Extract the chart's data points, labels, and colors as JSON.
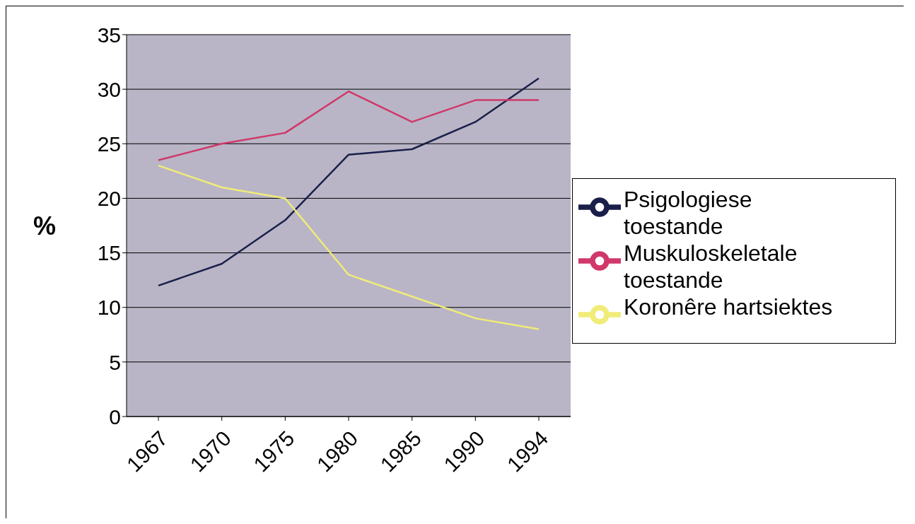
{
  "chart_data": {
    "type": "line",
    "ylabel": "%",
    "categories": [
      "1967",
      "1970",
      "1975",
      "1980",
      "1985",
      "1990",
      "1994"
    ],
    "series": [
      {
        "name": "Psigologiese toestande",
        "color": "#1a1f4a",
        "values": [
          12,
          14,
          18,
          24,
          24.5,
          27,
          31
        ]
      },
      {
        "name": "Muskuloskeletale toestande",
        "color": "#d0386a",
        "values": [
          23.5,
          25,
          26,
          29.8,
          27,
          29,
          29
        ]
      },
      {
        "name": "Koronêre hartsiektes",
        "color": "#f0ec78",
        "values": [
          23,
          21,
          20,
          13,
          11,
          9,
          8
        ]
      }
    ],
    "ylim": [
      0,
      35
    ],
    "yticks": [
      0,
      5,
      10,
      15,
      20,
      25,
      30,
      35
    ],
    "grid": "y",
    "legend": "right",
    "marker": "none",
    "line_style": "solid"
  }
}
